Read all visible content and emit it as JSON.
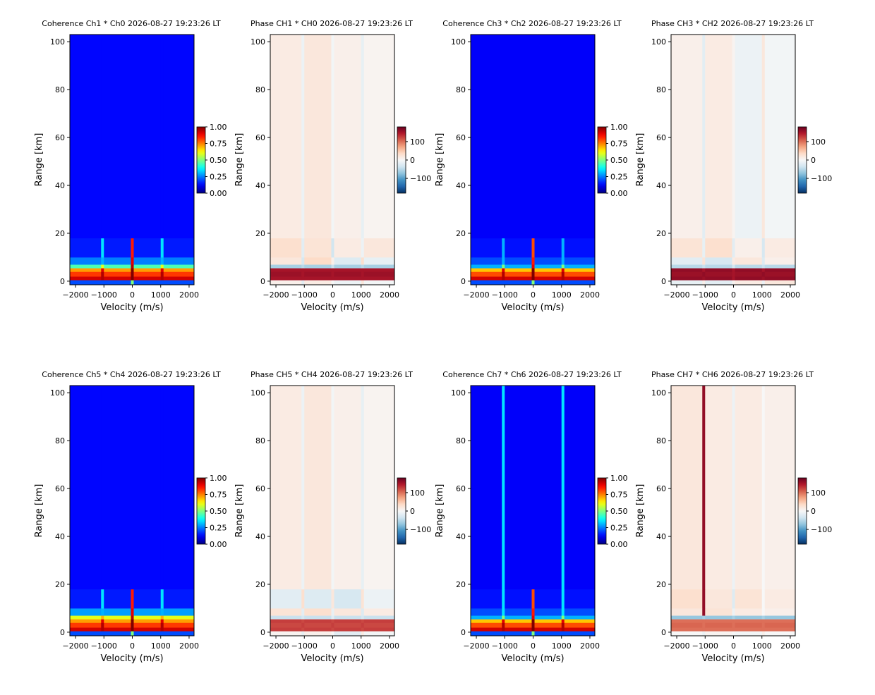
{
  "chart_data": [
    {
      "type": "heatmap",
      "title": "Coherence Ch1 * Ch0 2026-08-27 19:23:26 LT",
      "xlabel": "Velocity (m/s)",
      "ylabel": "Range [km]",
      "colormap": "jet",
      "clim": [
        0,
        1
      ],
      "cbar_ticks": [
        {
          "value": 0,
          "label": "0.00"
        },
        {
          "value": 0.25,
          "label": "0.25"
        },
        {
          "value": 0.5,
          "label": "0.50"
        },
        {
          "value": 0.75,
          "label": "0.75"
        },
        {
          "value": 1,
          "label": "1.00"
        }
      ],
      "xlim": [
        -2200,
        2175
      ],
      "ylim": [
        -1.5,
        103
      ],
      "xticks": [
        {
          "value": -2000,
          "label": "−2000"
        },
        {
          "value": -1000,
          "label": "−1000"
        },
        0,
        1000,
        2000
      ],
      "yticks": [
        0,
        20,
        40,
        60,
        80,
        100
      ],
      "x_edges": [
        -2200,
        -1100,
        -1000,
        -50,
        50,
        1000,
        1100,
        2175
      ],
      "y_edges": [
        -1.5,
        0.5,
        2,
        4,
        5.5,
        7,
        10,
        18,
        103
      ],
      "z": [
        [
          0.2,
          0.2,
          0.2,
          0.5,
          0.2,
          0.2,
          0.2
        ],
        [
          0.92,
          0.95,
          0.92,
          1,
          0.92,
          0.95,
          0.92
        ],
        [
          0.82,
          0.95,
          0.82,
          1,
          0.82,
          0.95,
          0.82
        ],
        [
          0.72,
          0.9,
          0.72,
          1,
          0.72,
          0.9,
          0.72
        ],
        [
          0.45,
          0.6,
          0.45,
          0.95,
          0.45,
          0.6,
          0.45
        ],
        [
          0.25,
          0.3,
          0.25,
          0.9,
          0.25,
          0.3,
          0.25
        ],
        [
          0.15,
          0.35,
          0.15,
          0.85,
          0.15,
          0.35,
          0.15
        ],
        [
          0.13,
          0.13,
          0.13,
          0.13,
          0.13,
          0.13,
          0.13
        ]
      ]
    },
    {
      "type": "heatmap",
      "title": "Phase CH1 * CH0 2026-08-27 19:23:26 LT",
      "xlabel": "Velocity (m/s)",
      "ylabel": "Range [km]",
      "colormap": "RdBu_r",
      "clim": [
        -180,
        180
      ],
      "cbar_ticks": [
        {
          "value": -100,
          "label": "−100"
        },
        0,
        100
      ],
      "xlim": [
        -2200,
        2175
      ],
      "ylim": [
        -1.5,
        103
      ],
      "xticks": [
        {
          "value": -2000,
          "label": "−2000"
        },
        {
          "value": -1000,
          "label": "−1000"
        },
        0,
        1000,
        2000
      ],
      "yticks": [
        0,
        20,
        40,
        60,
        80,
        100
      ],
      "x_edges": [
        -2200,
        -1100,
        -1000,
        -50,
        50,
        1000,
        1100,
        2175
      ],
      "y_edges": [
        -1.5,
        0.5,
        2,
        4,
        5.5,
        7,
        10,
        18,
        103
      ],
      "z": [
        [
          10,
          -20,
          15,
          0,
          -10,
          20,
          -5
        ],
        [
          150,
          150,
          150,
          150,
          150,
          150,
          150
        ],
        [
          155,
          150,
          155,
          150,
          155,
          150,
          155
        ],
        [
          150,
          150,
          150,
          150,
          150,
          150,
          150
        ],
        [
          -60,
          -50,
          -60,
          -40,
          -60,
          -50,
          -60
        ],
        [
          20,
          -30,
          35,
          10,
          -25,
          30,
          -15
        ],
        [
          30,
          -20,
          25,
          -35,
          15,
          -10,
          20
        ],
        [
          15,
          -10,
          20,
          -5,
          10,
          -15,
          5
        ]
      ]
    },
    {
      "type": "heatmap",
      "title": "Coherence Ch3 * Ch2 2026-08-27 19:23:26 LT",
      "xlabel": "Velocity (m/s)",
      "ylabel": "Range [km]",
      "colormap": "jet",
      "clim": [
        0,
        1
      ],
      "cbar_ticks": [
        {
          "value": 0,
          "label": "0.00"
        },
        {
          "value": 0.25,
          "label": "0.25"
        },
        {
          "value": 0.5,
          "label": "0.50"
        },
        {
          "value": 0.75,
          "label": "0.75"
        },
        {
          "value": 1,
          "label": "1.00"
        }
      ],
      "xlim": [
        -2200,
        2175
      ],
      "ylim": [
        -1.5,
        103
      ],
      "xticks": [
        {
          "value": -2000,
          "label": "−2000"
        },
        {
          "value": -1000,
          "label": "−1000"
        },
        0,
        1000,
        2000
      ],
      "yticks": [
        0,
        20,
        40,
        60,
        80,
        100
      ],
      "x_edges": [
        -2200,
        -1100,
        -1000,
        -50,
        50,
        1000,
        1100,
        2175
      ],
      "y_edges": [
        -1.5,
        0.5,
        2,
        4,
        5.5,
        7,
        10,
        18,
        103
      ],
      "z": [
        [
          0.2,
          0.2,
          0.2,
          0.5,
          0.2,
          0.2,
          0.2
        ],
        [
          0.92,
          0.95,
          0.92,
          1,
          0.92,
          0.95,
          0.92
        ],
        [
          0.8,
          0.95,
          0.8,
          1,
          0.8,
          0.95,
          0.8
        ],
        [
          0.68,
          0.9,
          0.68,
          1,
          0.68,
          0.9,
          0.68
        ],
        [
          0.3,
          0.5,
          0.3,
          0.9,
          0.3,
          0.5,
          0.3
        ],
        [
          0.2,
          0.3,
          0.2,
          0.85,
          0.2,
          0.3,
          0.2
        ],
        [
          0.14,
          0.3,
          0.14,
          0.8,
          0.14,
          0.3,
          0.14
        ],
        [
          0.12,
          0.12,
          0.12,
          0.12,
          0.12,
          0.12,
          0.12
        ]
      ]
    },
    {
      "type": "heatmap",
      "title": "Phase CH3 * CH2 2026-08-27 19:23:26 LT",
      "xlabel": "Velocity (m/s)",
      "ylabel": "Range [km]",
      "colormap": "RdBu_r",
      "clim": [
        -180,
        180
      ],
      "cbar_ticks": [
        {
          "value": -100,
          "label": "−100"
        },
        0,
        100
      ],
      "xlim": [
        -2200,
        2175
      ],
      "ylim": [
        -1.5,
        103
      ],
      "xticks": [
        {
          "value": -2000,
          "label": "−2000"
        },
        {
          "value": -1000,
          "label": "−1000"
        },
        0,
        1000,
        2000
      ],
      "yticks": [
        0,
        20,
        40,
        60,
        80,
        100
      ],
      "x_edges": [
        -2200,
        -1100,
        -1000,
        -50,
        50,
        1000,
        1100,
        2175
      ],
      "y_edges": [
        -1.5,
        0.5,
        2,
        4,
        5.5,
        7,
        10,
        18,
        103
      ],
      "z": [
        [
          -15,
          10,
          -20,
          5,
          15,
          -10,
          20
        ],
        [
          160,
          155,
          160,
          150,
          160,
          155,
          160
        ],
        [
          155,
          160,
          155,
          150,
          155,
          160,
          155
        ],
        [
          160,
          150,
          160,
          150,
          160,
          150,
          160
        ],
        [
          -50,
          -40,
          -50,
          -30,
          -50,
          -40,
          -50
        ],
        [
          -20,
          25,
          -30,
          15,
          20,
          -25,
          10
        ],
        [
          25,
          -15,
          30,
          -20,
          10,
          -30,
          15
        ],
        [
          10,
          -20,
          15,
          5,
          -10,
          20,
          -5
        ]
      ]
    },
    {
      "type": "heatmap",
      "title": "Coherence Ch5 * Ch4 2026-08-27 19:23:26 LT",
      "xlabel": "Velocity (m/s)",
      "ylabel": "Range [km]",
      "colormap": "jet",
      "clim": [
        0,
        1
      ],
      "cbar_ticks": [
        {
          "value": 0,
          "label": "0.00"
        },
        {
          "value": 0.25,
          "label": "0.25"
        },
        {
          "value": 0.5,
          "label": "0.50"
        },
        {
          "value": 0.75,
          "label": "0.75"
        },
        {
          "value": 1,
          "label": "1.00"
        }
      ],
      "xlim": [
        -2200,
        2175
      ],
      "ylim": [
        -1.5,
        103
      ],
      "xticks": [
        {
          "value": -2000,
          "label": "−2000"
        },
        {
          "value": -1000,
          "label": "−1000"
        },
        0,
        1000,
        2000
      ],
      "yticks": [
        0,
        20,
        40,
        60,
        80,
        100
      ],
      "x_edges": [
        -2200,
        -1100,
        -1000,
        -50,
        50,
        1000,
        1100,
        2175
      ],
      "y_edges": [
        -1.5,
        0.5,
        2,
        4,
        5.5,
        7,
        10,
        18,
        103
      ],
      "z": [
        [
          0.2,
          0.2,
          0.2,
          0.5,
          0.2,
          0.2,
          0.2
        ],
        [
          0.92,
          0.95,
          0.92,
          1,
          0.92,
          0.95,
          0.92
        ],
        [
          0.82,
          0.95,
          0.82,
          1,
          0.82,
          0.95,
          0.82
        ],
        [
          0.72,
          0.9,
          0.72,
          1,
          0.72,
          0.9,
          0.72
        ],
        [
          0.6,
          0.7,
          0.6,
          0.95,
          0.6,
          0.7,
          0.6
        ],
        [
          0.28,
          0.3,
          0.28,
          0.9,
          0.28,
          0.3,
          0.28
        ],
        [
          0.15,
          0.35,
          0.15,
          0.85,
          0.15,
          0.35,
          0.15
        ],
        [
          0.13,
          0.13,
          0.13,
          0.13,
          0.13,
          0.13,
          0.13
        ]
      ]
    },
    {
      "type": "heatmap",
      "title": "Phase CH5 * CH4 2026-08-27 19:23:26 LT",
      "xlabel": "Velocity (m/s)",
      "ylabel": "Range [km]",
      "colormap": "RdBu_r",
      "clim": [
        -180,
        180
      ],
      "cbar_ticks": [
        {
          "value": -100,
          "label": "−100"
        },
        0,
        100
      ],
      "xlim": [
        -2200,
        2175
      ],
      "ylim": [
        -1.5,
        103
      ],
      "xticks": [
        {
          "value": -2000,
          "label": "−2000"
        },
        {
          "value": -1000,
          "label": "−1000"
        },
        0,
        1000,
        2000
      ],
      "yticks": [
        0,
        20,
        40,
        60,
        80,
        100
      ],
      "x_edges": [
        -2200,
        -1100,
        -1000,
        -50,
        50,
        1000,
        1100,
        2175
      ],
      "y_edges": [
        -1.5,
        0.5,
        2,
        4,
        5.5,
        7,
        10,
        18,
        103
      ],
      "z": [
        [
          5,
          -15,
          10,
          0,
          -20,
          15,
          -5
        ],
        [
          125,
          120,
          125,
          120,
          125,
          120,
          125
        ],
        [
          120,
          125,
          120,
          125,
          120,
          125,
          120
        ],
        [
          125,
          120,
          125,
          120,
          125,
          120,
          125
        ],
        [
          -40,
          -30,
          -40,
          -20,
          -40,
          -30,
          -40
        ],
        [
          25,
          -20,
          30,
          -15,
          20,
          -25,
          15
        ],
        [
          -20,
          30,
          -25,
          20,
          -30,
          25,
          -10
        ],
        [
          15,
          -10,
          20,
          -5,
          10,
          -15,
          5
        ]
      ]
    },
    {
      "type": "heatmap",
      "title": "Coherence Ch7 * Ch6 2026-08-27 19:23:26 LT",
      "xlabel": "Velocity (m/s)",
      "ylabel": "Range [km]",
      "colormap": "jet",
      "clim": [
        0,
        1
      ],
      "cbar_ticks": [
        {
          "value": 0,
          "label": "0.00"
        },
        {
          "value": 0.25,
          "label": "0.25"
        },
        {
          "value": 0.5,
          "label": "0.50"
        },
        {
          "value": 0.75,
          "label": "0.75"
        },
        {
          "value": 1,
          "label": "1.00"
        }
      ],
      "xlim": [
        -2200,
        2175
      ],
      "ylim": [
        -1.5,
        103
      ],
      "xticks": [
        {
          "value": -2000,
          "label": "−2000"
        },
        {
          "value": -1000,
          "label": "−1000"
        },
        0,
        1000,
        2000
      ],
      "yticks": [
        0,
        20,
        40,
        60,
        80,
        100
      ],
      "x_edges": [
        -2200,
        -1100,
        -1000,
        -50,
        50,
        1000,
        1100,
        2175
      ],
      "y_edges": [
        -1.5,
        0.5,
        2,
        4,
        5.5,
        7,
        10,
        18,
        103
      ],
      "z": [
        [
          0.2,
          0.2,
          0.2,
          0.5,
          0.2,
          0.2,
          0.2
        ],
        [
          0.92,
          0.95,
          0.92,
          1,
          0.92,
          0.95,
          0.92
        ],
        [
          0.8,
          0.95,
          0.8,
          1,
          0.8,
          0.95,
          0.8
        ],
        [
          0.68,
          0.9,
          0.68,
          1,
          0.68,
          0.9,
          0.68
        ],
        [
          0.3,
          0.5,
          0.3,
          0.9,
          0.3,
          0.5,
          0.3
        ],
        [
          0.2,
          0.35,
          0.2,
          0.85,
          0.2,
          0.35,
          0.2
        ],
        [
          0.14,
          0.35,
          0.14,
          0.8,
          0.14,
          0.35,
          0.14
        ],
        [
          0.12,
          0.35,
          0.12,
          0.12,
          0.12,
          0.35,
          0.12
        ]
      ]
    },
    {
      "type": "heatmap",
      "title": "Phase CH7 * CH6 2026-08-27 19:23:26 LT",
      "xlabel": "Velocity (m/s)",
      "ylabel": "Range [km]",
      "colormap": "RdBu_r",
      "clim": [
        -180,
        180
      ],
      "cbar_ticks": [
        {
          "value": -100,
          "label": "−100"
        },
        0,
        100
      ],
      "xlim": [
        -2200,
        2175
      ],
      "ylim": [
        -1.5,
        103
      ],
      "xticks": [
        {
          "value": -2000,
          "label": "−2000"
        },
        {
          "value": -1000,
          "label": "−1000"
        },
        0,
        1000,
        2000
      ],
      "yticks": [
        0,
        20,
        40,
        60,
        80,
        100
      ],
      "x_edges": [
        -2200,
        -1100,
        -1000,
        -50,
        50,
        1000,
        1100,
        2175
      ],
      "y_edges": [
        -1.5,
        0.5,
        2,
        4,
        5.5,
        7,
        10,
        18,
        103
      ],
      "z": [
        [
          0,
          -10,
          5,
          0,
          -5,
          10,
          0
        ],
        [
          100,
          100,
          100,
          100,
          100,
          100,
          100
        ],
        [
          105,
          100,
          105,
          100,
          105,
          100,
          105
        ],
        [
          100,
          100,
          100,
          100,
          100,
          100,
          100
        ],
        [
          -70,
          -60,
          -70,
          -60,
          -70,
          -60,
          -70
        ],
        [
          20,
          160,
          25,
          -10,
          15,
          0,
          10
        ],
        [
          30,
          160,
          20,
          -25,
          25,
          0,
          15
        ],
        [
          20,
          160,
          15,
          -10,
          15,
          0,
          10
        ]
      ]
    }
  ]
}
